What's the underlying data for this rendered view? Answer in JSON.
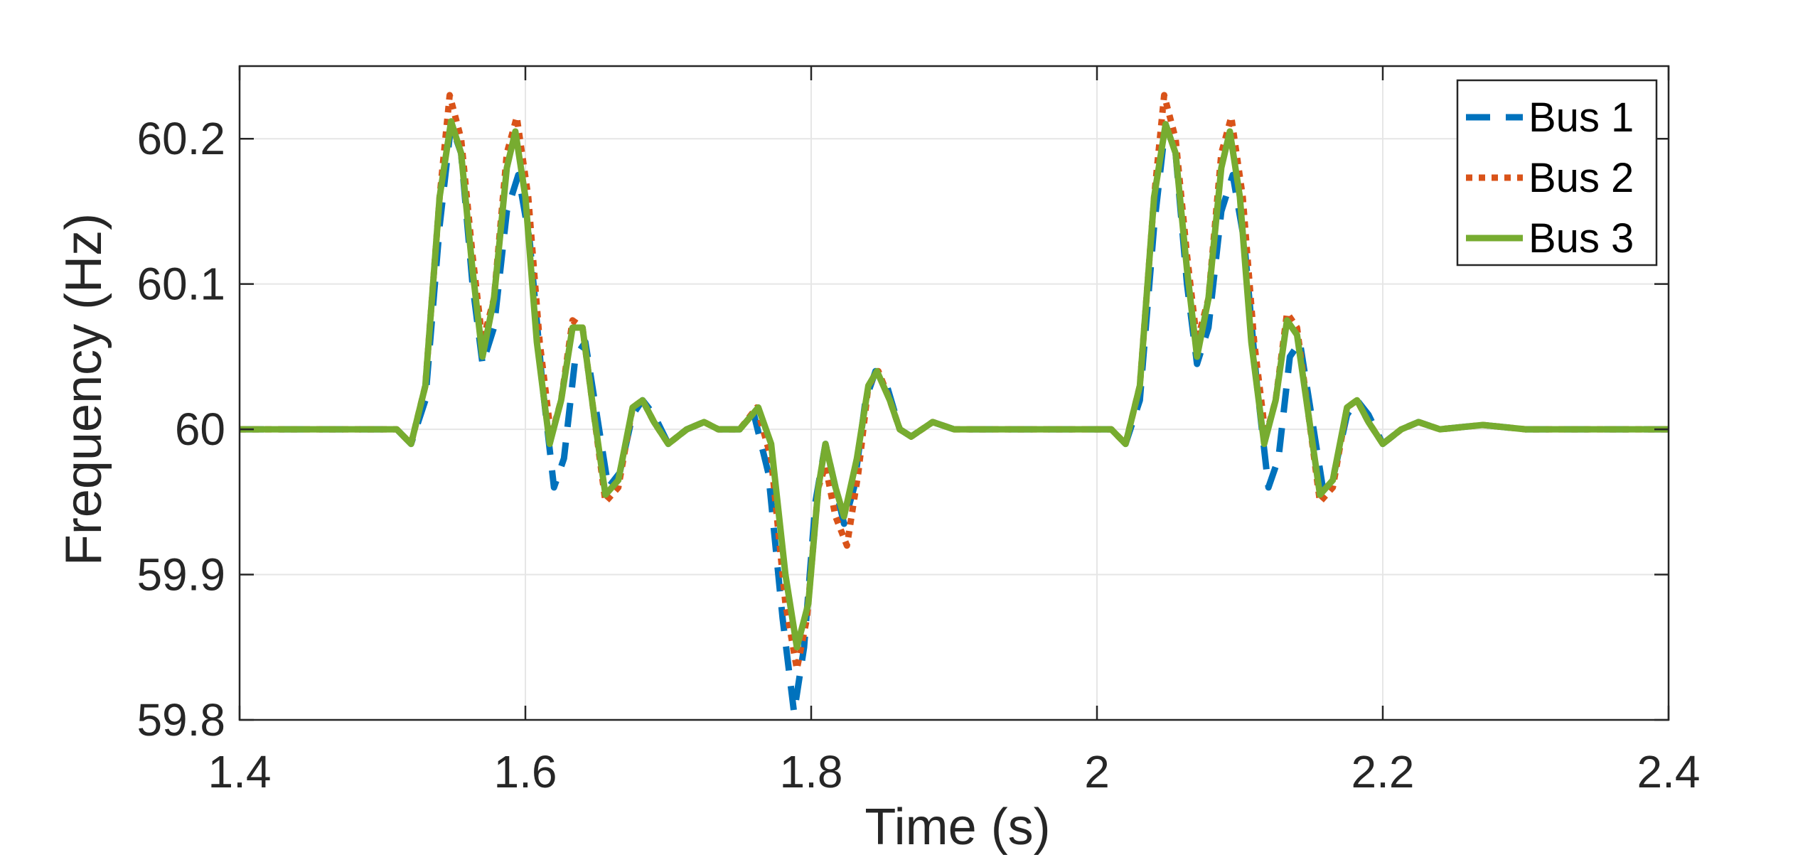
{
  "chart_data": {
    "type": "line",
    "title": "",
    "xlabel": "Time (s)",
    "ylabel": "Frequency (Hz)",
    "xlim": [
      1.4,
      2.4
    ],
    "ylim": [
      59.8,
      60.25
    ],
    "x_ticks": [
      1.4,
      1.6,
      1.8,
      2.0,
      2.2,
      2.4
    ],
    "x_tick_labels": [
      "1.4",
      "1.6",
      "1.8",
      "2",
      "2.2",
      "2.4"
    ],
    "y_ticks": [
      59.8,
      59.9,
      60.0,
      60.1,
      60.2
    ],
    "y_tick_labels": [
      "59.8",
      "59.9",
      "60",
      "60.1",
      "60.2"
    ],
    "grid": true,
    "legend_position": "top-right",
    "series": [
      {
        "name": "Bus 1",
        "color": "#0072BD",
        "style": "dashed",
        "points": [
          [
            1.4,
            60.0
          ],
          [
            1.51,
            60.0
          ],
          [
            1.52,
            59.99
          ],
          [
            1.53,
            60.02
          ],
          [
            1.54,
            60.14
          ],
          [
            1.548,
            60.21
          ],
          [
            1.555,
            60.19
          ],
          [
            1.563,
            60.1
          ],
          [
            1.57,
            60.045
          ],
          [
            1.578,
            60.07
          ],
          [
            1.587,
            60.15
          ],
          [
            1.595,
            60.175
          ],
          [
            1.603,
            60.13
          ],
          [
            1.612,
            60.03
          ],
          [
            1.62,
            59.96
          ],
          [
            1.627,
            59.98
          ],
          [
            1.635,
            60.05
          ],
          [
            1.642,
            60.06
          ],
          [
            1.65,
            60.01
          ],
          [
            1.658,
            59.96
          ],
          [
            1.666,
            59.97
          ],
          [
            1.675,
            60.01
          ],
          [
            1.682,
            60.02
          ],
          [
            1.69,
            60.01
          ],
          [
            1.7,
            59.99
          ],
          [
            1.713,
            60.0
          ],
          [
            1.725,
            60.005
          ],
          [
            1.735,
            60.0
          ],
          [
            1.75,
            60.0
          ],
          [
            1.76,
            60.01
          ],
          [
            1.77,
            59.97
          ],
          [
            1.78,
            59.87
          ],
          [
            1.788,
            59.805
          ],
          [
            1.795,
            59.85
          ],
          [
            1.803,
            59.95
          ],
          [
            1.81,
            59.99
          ],
          [
            1.817,
            59.96
          ],
          [
            1.823,
            59.935
          ],
          [
            1.83,
            59.96
          ],
          [
            1.838,
            60.02
          ],
          [
            1.845,
            60.04
          ],
          [
            1.853,
            60.03
          ],
          [
            1.862,
            60.0
          ],
          [
            1.87,
            59.995
          ],
          [
            1.885,
            60.005
          ],
          [
            1.9,
            60.0
          ],
          [
            1.95,
            60.0
          ],
          [
            2.01,
            60.0
          ],
          [
            2.02,
            59.99
          ],
          [
            2.03,
            60.02
          ],
          [
            2.04,
            60.14
          ],
          [
            2.048,
            60.21
          ],
          [
            2.055,
            60.19
          ],
          [
            2.063,
            60.1
          ],
          [
            2.07,
            60.045
          ],
          [
            2.078,
            60.07
          ],
          [
            2.087,
            60.15
          ],
          [
            2.095,
            60.175
          ],
          [
            2.103,
            60.13
          ],
          [
            2.112,
            60.03
          ],
          [
            2.12,
            59.96
          ],
          [
            2.127,
            59.98
          ],
          [
            2.135,
            60.05
          ],
          [
            2.142,
            60.06
          ],
          [
            2.15,
            60.01
          ],
          [
            2.158,
            59.96
          ],
          [
            2.166,
            59.97
          ],
          [
            2.175,
            60.01
          ],
          [
            2.182,
            60.02
          ],
          [
            2.19,
            60.01
          ],
          [
            2.2,
            59.99
          ],
          [
            2.213,
            60.0
          ],
          [
            2.225,
            60.005
          ],
          [
            2.24,
            60.0
          ],
          [
            2.27,
            60.003
          ],
          [
            2.3,
            60.0
          ],
          [
            2.4,
            60.0
          ]
        ]
      },
      {
        "name": "Bus 2",
        "color": "#D95319",
        "style": "dotted",
        "points": [
          [
            1.4,
            60.0
          ],
          [
            1.51,
            60.0
          ],
          [
            1.52,
            59.99
          ],
          [
            1.53,
            60.03
          ],
          [
            1.54,
            60.16
          ],
          [
            1.547,
            60.23
          ],
          [
            1.555,
            60.2
          ],
          [
            1.563,
            60.12
          ],
          [
            1.57,
            60.06
          ],
          [
            1.578,
            60.09
          ],
          [
            1.587,
            60.19
          ],
          [
            1.594,
            60.215
          ],
          [
            1.602,
            60.16
          ],
          [
            1.61,
            60.06
          ],
          [
            1.618,
            59.995
          ],
          [
            1.625,
            60.02
          ],
          [
            1.633,
            60.075
          ],
          [
            1.64,
            60.07
          ],
          [
            1.648,
            60.01
          ],
          [
            1.656,
            59.95
          ],
          [
            1.665,
            59.96
          ],
          [
            1.675,
            60.015
          ],
          [
            1.682,
            60.02
          ],
          [
            1.69,
            60.005
          ],
          [
            1.7,
            59.99
          ],
          [
            1.713,
            60.0
          ],
          [
            1.725,
            60.005
          ],
          [
            1.735,
            60.0
          ],
          [
            1.75,
            60.0
          ],
          [
            1.762,
            60.015
          ],
          [
            1.772,
            59.98
          ],
          [
            1.782,
            59.88
          ],
          [
            1.79,
            59.835
          ],
          [
            1.797,
            59.87
          ],
          [
            1.805,
            59.96
          ],
          [
            1.81,
            59.975
          ],
          [
            1.817,
            59.94
          ],
          [
            1.825,
            59.92
          ],
          [
            1.833,
            59.97
          ],
          [
            1.84,
            60.03
          ],
          [
            1.847,
            60.04
          ],
          [
            1.855,
            60.02
          ],
          [
            1.862,
            60.0
          ],
          [
            1.87,
            59.995
          ],
          [
            1.885,
            60.005
          ],
          [
            1.9,
            60.0
          ],
          [
            1.95,
            60.0
          ],
          [
            2.01,
            60.0
          ],
          [
            2.02,
            59.99
          ],
          [
            2.03,
            60.03
          ],
          [
            2.04,
            60.16
          ],
          [
            2.047,
            60.23
          ],
          [
            2.055,
            60.2
          ],
          [
            2.063,
            60.12
          ],
          [
            2.07,
            60.06
          ],
          [
            2.078,
            60.09
          ],
          [
            2.087,
            60.19
          ],
          [
            2.094,
            60.215
          ],
          [
            2.102,
            60.16
          ],
          [
            2.11,
            60.06
          ],
          [
            2.118,
            59.995
          ],
          [
            2.125,
            60.02
          ],
          [
            2.133,
            60.08
          ],
          [
            2.14,
            60.07
          ],
          [
            2.148,
            60.01
          ],
          [
            2.156,
            59.95
          ],
          [
            2.165,
            59.96
          ],
          [
            2.175,
            60.015
          ],
          [
            2.182,
            60.02
          ],
          [
            2.19,
            60.005
          ],
          [
            2.2,
            59.99
          ],
          [
            2.213,
            60.0
          ],
          [
            2.225,
            60.005
          ],
          [
            2.24,
            60.0
          ],
          [
            2.27,
            60.003
          ],
          [
            2.3,
            60.0
          ],
          [
            2.4,
            60.0
          ]
        ]
      },
      {
        "name": "Bus 3",
        "color": "#77AC30",
        "style": "solid",
        "points": [
          [
            1.4,
            60.0
          ],
          [
            1.51,
            60.0
          ],
          [
            1.52,
            59.99
          ],
          [
            1.53,
            60.03
          ],
          [
            1.54,
            60.16
          ],
          [
            1.548,
            60.212
          ],
          [
            1.555,
            60.19
          ],
          [
            1.563,
            60.11
          ],
          [
            1.57,
            60.05
          ],
          [
            1.578,
            60.09
          ],
          [
            1.587,
            60.18
          ],
          [
            1.593,
            60.205
          ],
          [
            1.6,
            60.16
          ],
          [
            1.608,
            60.06
          ],
          [
            1.617,
            59.99
          ],
          [
            1.625,
            60.02
          ],
          [
            1.633,
            60.07
          ],
          [
            1.64,
            60.07
          ],
          [
            1.648,
            60.01
          ],
          [
            1.656,
            59.955
          ],
          [
            1.665,
            59.965
          ],
          [
            1.675,
            60.015
          ],
          [
            1.682,
            60.02
          ],
          [
            1.69,
            60.005
          ],
          [
            1.7,
            59.99
          ],
          [
            1.713,
            60.0
          ],
          [
            1.725,
            60.005
          ],
          [
            1.735,
            60.0
          ],
          [
            1.75,
            60.0
          ],
          [
            1.763,
            60.015
          ],
          [
            1.772,
            59.99
          ],
          [
            1.782,
            59.9
          ],
          [
            1.79,
            59.85
          ],
          [
            1.798,
            59.88
          ],
          [
            1.805,
            59.96
          ],
          [
            1.81,
            59.99
          ],
          [
            1.817,
            59.96
          ],
          [
            1.823,
            59.94
          ],
          [
            1.832,
            59.98
          ],
          [
            1.84,
            60.03
          ],
          [
            1.846,
            60.04
          ],
          [
            1.855,
            60.02
          ],
          [
            1.862,
            60.0
          ],
          [
            1.87,
            59.995
          ],
          [
            1.885,
            60.005
          ],
          [
            1.9,
            60.0
          ],
          [
            1.95,
            60.0
          ],
          [
            2.01,
            60.0
          ],
          [
            2.02,
            59.99
          ],
          [
            2.03,
            60.03
          ],
          [
            2.04,
            60.16
          ],
          [
            2.048,
            60.21
          ],
          [
            2.055,
            60.19
          ],
          [
            2.063,
            60.11
          ],
          [
            2.07,
            60.05
          ],
          [
            2.078,
            60.09
          ],
          [
            2.087,
            60.18
          ],
          [
            2.093,
            60.205
          ],
          [
            2.1,
            60.16
          ],
          [
            2.108,
            60.06
          ],
          [
            2.117,
            59.99
          ],
          [
            2.125,
            60.02
          ],
          [
            2.133,
            60.075
          ],
          [
            2.14,
            60.065
          ],
          [
            2.148,
            60.01
          ],
          [
            2.156,
            59.955
          ],
          [
            2.165,
            59.965
          ],
          [
            2.175,
            60.015
          ],
          [
            2.182,
            60.02
          ],
          [
            2.19,
            60.005
          ],
          [
            2.2,
            59.99
          ],
          [
            2.213,
            60.0
          ],
          [
            2.225,
            60.005
          ],
          [
            2.24,
            60.0
          ],
          [
            2.27,
            60.003
          ],
          [
            2.3,
            60.0
          ],
          [
            2.4,
            60.0
          ]
        ]
      }
    ]
  }
}
